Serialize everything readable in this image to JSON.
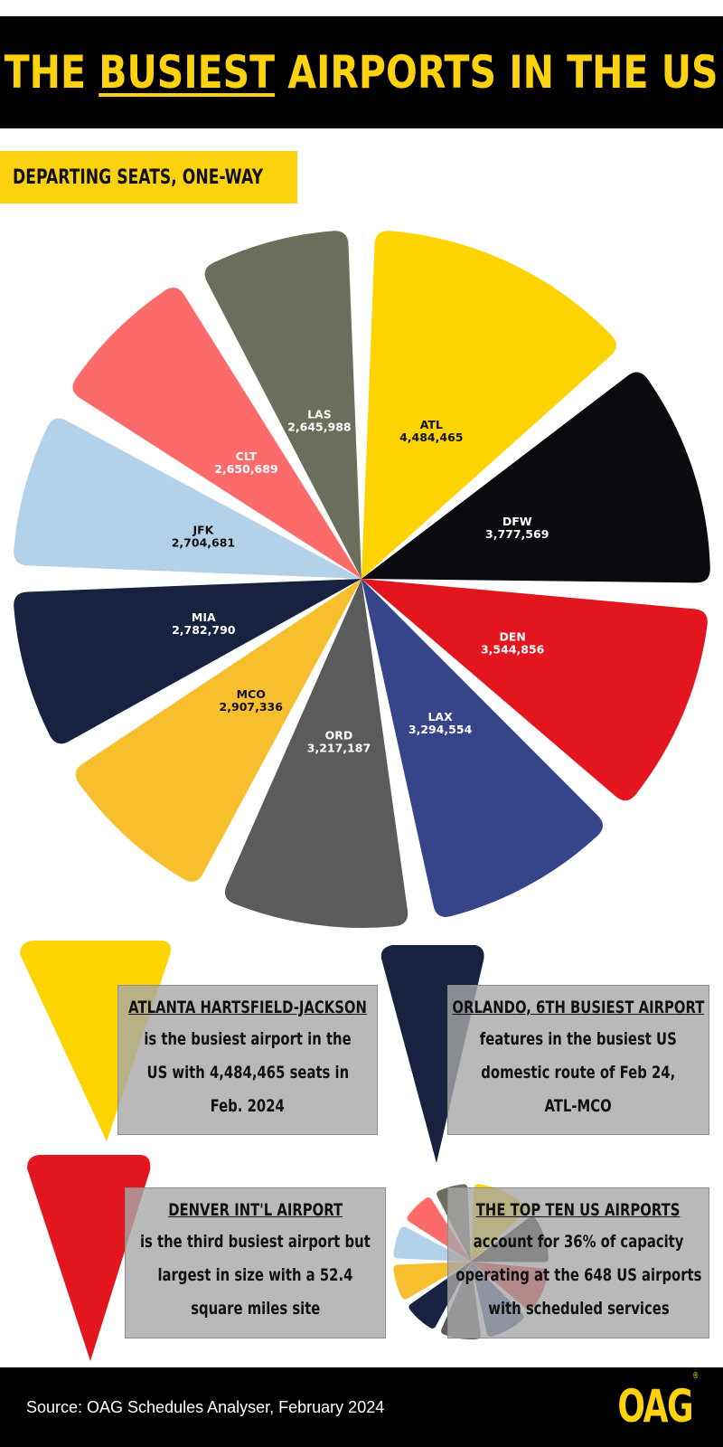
{
  "header": {
    "title_pre": "THE ",
    "title_underlined": "BUSIEST",
    "title_post": " AIRPORTS IN THE US",
    "subtitle": "DEPARTING SEATS, ONE-WAY"
  },
  "colors": {
    "brand_yellow": "#fcd20e",
    "black": "#000000",
    "callout_gray": "#a8a8a8"
  },
  "chart_data": {
    "type": "pie",
    "title": "THE BUSIEST AIRPORTS IN THE US",
    "subtitle": "DEPARTING SEATS, ONE-WAY",
    "categories": [
      "ATL",
      "DFW",
      "DEN",
      "LAX",
      "ORD",
      "MCO",
      "MIA",
      "JFK",
      "CLT",
      "LAS"
    ],
    "values": [
      4484465,
      3777569,
      3544856,
      3294554,
      3217187,
      2907336,
      2782790,
      2704681,
      2650689,
      2645988
    ],
    "labels": [
      "4,484,465",
      "3,777,569",
      "3,544,856",
      "3,294,554",
      "3,217,187",
      "2,907,336",
      "2,782,790",
      "2,704,681",
      "2,650,689",
      "2,645,988"
    ],
    "colors": [
      "#fdd402",
      "#0b0b0f",
      "#e3161f",
      "#36448a",
      "#5b5b5b",
      "#f7bf2e",
      "#16223f",
      "#b3d1e8",
      "#fd6a6a",
      "#6a6e5a"
    ],
    "label_colors": [
      "#111111",
      "#ffffff",
      "#ffffff",
      "#ffffff",
      "#ffffff",
      "#111111",
      "#ffffff",
      "#111111",
      "#ffffff",
      "#ffffff"
    ],
    "legend": "none",
    "exploded": true
  },
  "callouts": [
    {
      "heading": "ATLANTA HARTSFIELD-JACKSON",
      "lines": [
        "is the busiest airport in the",
        "US with 4,484,465 seats in",
        "Feb. 2024"
      ]
    },
    {
      "heading": "ORLANDO, 6TH BUSIEST AIRPORT",
      "lines": [
        "features in the busiest US",
        "domestic route of Feb 24,",
        "ATL-MCO"
      ]
    },
    {
      "heading": "DENVER INT'L AIRPORT",
      "lines": [
        "is the third busiest airport but",
        "largest in size with a 52.4",
        "square miles site"
      ]
    },
    {
      "heading": "THE TOP TEN US AIRPORTS",
      "lines": [
        "account for 36% of capacity",
        "operating at the 648 US airports",
        "with scheduled services"
      ]
    }
  ],
  "footer": {
    "source": "Source: OAG Schedules Analyser, February 2024",
    "logo": "OAG",
    "logo_mark": "®"
  }
}
